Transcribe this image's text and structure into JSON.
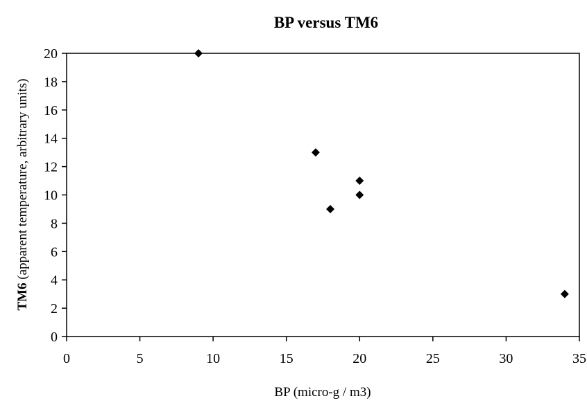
{
  "chart_data": {
    "type": "scatter",
    "title": "BP versus TM6",
    "xlabel": "BP (micro-g / m3)",
    "ylabel": {
      "bold": "TM6",
      "rest": " (apparent temperature, arbitrary units)"
    },
    "xlim": [
      0,
      35
    ],
    "ylim": [
      0,
      20
    ],
    "x_ticks": [
      0,
      5,
      10,
      15,
      20,
      25,
      30,
      35
    ],
    "y_ticks": [
      0,
      2,
      4,
      6,
      8,
      10,
      12,
      14,
      16,
      18,
      20
    ],
    "grid": false,
    "legend": "none",
    "marker": "diamond",
    "marker_color": "#000000",
    "series": [
      {
        "points": [
          {
            "x": 9,
            "y": 20
          },
          {
            "x": 17,
            "y": 13
          },
          {
            "x": 20,
            "y": 11
          },
          {
            "x": 20,
            "y": 10
          },
          {
            "x": 18,
            "y": 9
          },
          {
            "x": 34,
            "y": 3
          }
        ]
      }
    ]
  }
}
